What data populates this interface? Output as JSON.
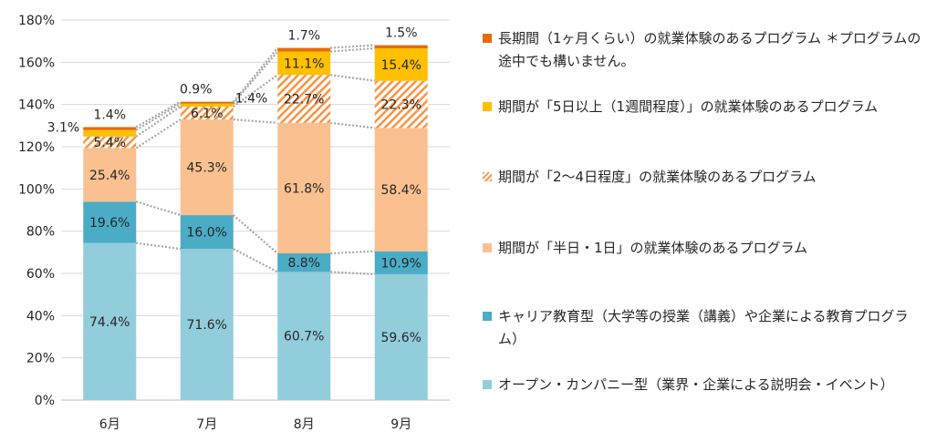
{
  "chart_data": {
    "type": "stacked-bar",
    "categories": [
      "6月",
      "7月",
      "8月",
      "9月"
    ],
    "ylim": [
      0,
      180
    ],
    "yticks": [
      0,
      20,
      40,
      60,
      80,
      100,
      120,
      140,
      160,
      180
    ],
    "ytick_suffix": "%",
    "series": [
      {
        "name": "オープン・カンパニー型（業界・企業による説明会・イベント）",
        "color": "#92CDDC",
        "pattern": "none",
        "values": [
          74.4,
          71.6,
          60.7,
          59.6
        ]
      },
      {
        "name": "キャリア教育型（大学等の授業（講義）や企業による教育プログラム）",
        "color": "#4BACC6",
        "pattern": "none",
        "values": [
          19.6,
          16.0,
          8.8,
          10.9
        ]
      },
      {
        "name": "期間が「半日・1日」の就業体験のあるプログラム",
        "color": "#FAC090",
        "pattern": "none",
        "values": [
          25.4,
          45.3,
          61.8,
          58.4
        ]
      },
      {
        "name": "期間が「2～4日程度」の就業体験のあるプログラム",
        "color": "#F79646",
        "pattern": "hatch",
        "values": [
          5.4,
          6.1,
          22.7,
          22.3
        ]
      },
      {
        "name": "期間が「5日以上（1週間程度）」の就業体験のあるプログラム",
        "color": "#FFC000",
        "pattern": "none",
        "values": [
          3.1,
          1.4,
          11.1,
          15.4
        ]
      },
      {
        "name": "長期間（1ヶ月くらい）の就業体験のあるプログラム ＊プログラムの途中でも構いません。",
        "color": "#E46C0A",
        "pattern": "none",
        "values": [
          1.4,
          0.9,
          1.7,
          1.5
        ]
      }
    ],
    "data_labels": [
      [
        "74.4%",
        "71.6%",
        "60.7%",
        "59.6%"
      ],
      [
        "19.6%",
        "16.0%",
        "8.8%",
        "10.9%"
      ],
      [
        "25.4%",
        "45.3%",
        "61.8%",
        "58.4%"
      ],
      [
        "5.4%",
        "6.1%",
        "22.7%",
        "22.3%"
      ],
      [
        "3.1%",
        "1.4%",
        "11.1%",
        "15.4%"
      ],
      [
        "1.4%",
        "0.9%",
        "1.7%",
        "1.5%"
      ]
    ],
    "legend_position": "right",
    "series_lines": true
  }
}
